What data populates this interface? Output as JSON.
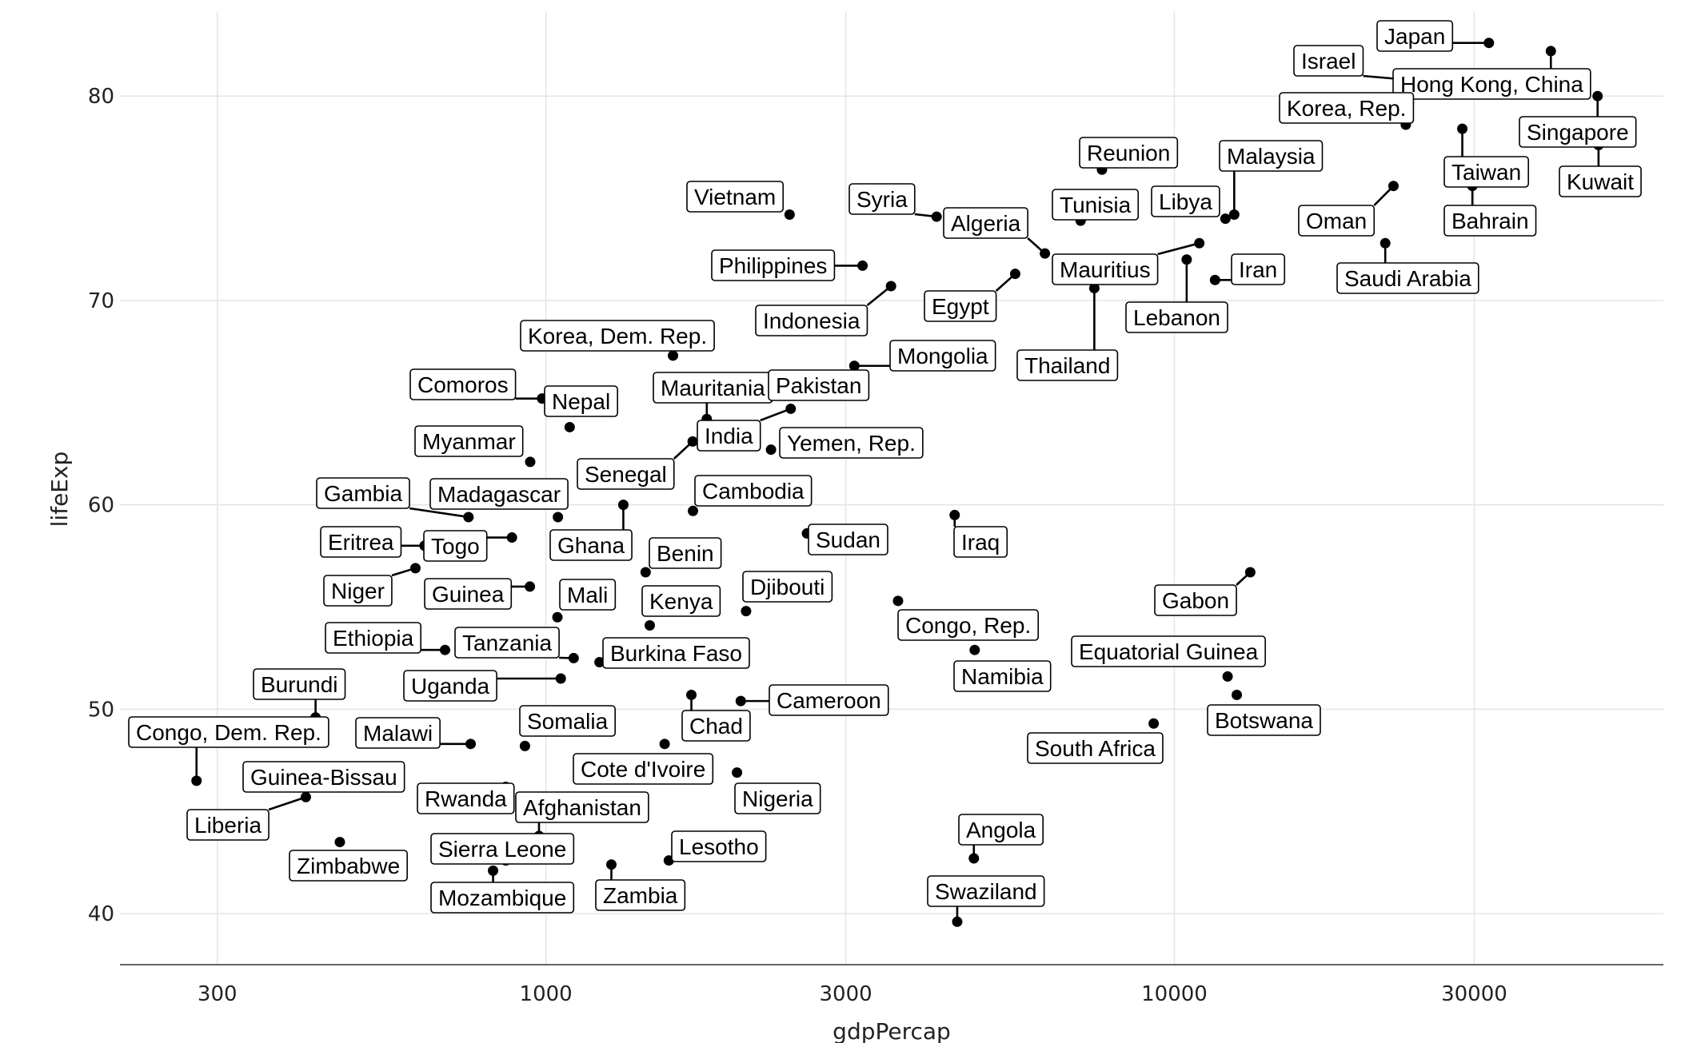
{
  "chart_data": {
    "type": "scatter",
    "xlabel": "gdpPercap",
    "ylabel": "lifeExp",
    "x_scale": "log10",
    "xlim": [
      210,
      60000
    ],
    "ylim": [
      37.5,
      84.7
    ],
    "x_ticks": [
      300,
      1000,
      3000,
      10000,
      30000
    ],
    "y_ticks": [
      40,
      50,
      60,
      70,
      80
    ],
    "grid": true,
    "legend": "none",
    "points": [
      {
        "name": "Japan",
        "x": 31656,
        "y": 82.6
      },
      {
        "name": "Israel",
        "x": 25523,
        "y": 80.7
      },
      {
        "name": "Hong Kong, China",
        "x": 39725,
        "y": 82.2
      },
      {
        "name": "Korea, Rep.",
        "x": 23348,
        "y": 78.6
      },
      {
        "name": "Singapore",
        "x": 47143,
        "y": 80.0
      },
      {
        "name": "Taiwan",
        "x": 28718,
        "y": 78.4
      },
      {
        "name": "Kuwait",
        "x": 47307,
        "y": 77.6
      },
      {
        "name": "Bahrain",
        "x": 29796,
        "y": 75.6
      },
      {
        "name": "Oman",
        "x": 22316,
        "y": 75.6
      },
      {
        "name": "Saudi Arabia",
        "x": 21655,
        "y": 72.8
      },
      {
        "name": "Malaysia",
        "x": 12452,
        "y": 74.2
      },
      {
        "name": "Libya",
        "x": 12057,
        "y": 74.0
      },
      {
        "name": "Reunion",
        "x": 7670,
        "y": 76.4
      },
      {
        "name": "Tunisia",
        "x": 7093,
        "y": 73.9
      },
      {
        "name": "Iran",
        "x": 11606,
        "y": 71.0
      },
      {
        "name": "Lebanon",
        "x": 10461,
        "y": 72.0
      },
      {
        "name": "Mauritius",
        "x": 10957,
        "y": 72.8
      },
      {
        "name": "Thailand",
        "x": 7458,
        "y": 70.6
      },
      {
        "name": "Algeria",
        "x": 6223,
        "y": 72.3
      },
      {
        "name": "Egypt",
        "x": 5581,
        "y": 71.3
      },
      {
        "name": "Syria",
        "x": 4185,
        "y": 74.1
      },
      {
        "name": "Vietnam",
        "x": 2442,
        "y": 74.2
      },
      {
        "name": "Philippines",
        "x": 3190,
        "y": 71.7
      },
      {
        "name": "Indonesia",
        "x": 3541,
        "y": 70.7
      },
      {
        "name": "Mongolia",
        "x": 3096,
        "y": 66.8
      },
      {
        "name": "Korea, Dem. Rep.",
        "x": 1593,
        "y": 67.3
      },
      {
        "name": "Comoros",
        "x": 986,
        "y": 65.2
      },
      {
        "name": "Nepal",
        "x": 1091,
        "y": 63.8
      },
      {
        "name": "Mauritania",
        "x": 1803,
        "y": 64.2
      },
      {
        "name": "Pakistan",
        "x": 2606,
        "y": 65.5
      },
      {
        "name": "India",
        "x": 2452,
        "y": 64.7
      },
      {
        "name": "Yemen, Rep.",
        "x": 2281,
        "y": 62.7
      },
      {
        "name": "Myanmar",
        "x": 944,
        "y": 62.1
      },
      {
        "name": "Senegal",
        "x": 1712,
        "y": 63.1
      },
      {
        "name": "Cambodia",
        "x": 1714,
        "y": 59.7
      },
      {
        "name": "Gambia",
        "x": 753,
        "y": 59.4
      },
      {
        "name": "Madagascar",
        "x": 1045,
        "y": 59.4
      },
      {
        "name": "Ghana",
        "x": 1328,
        "y": 60.0
      },
      {
        "name": "Eritrea",
        "x": 641,
        "y": 58.0
      },
      {
        "name": "Togo",
        "x": 883,
        "y": 58.4
      },
      {
        "name": "Benin",
        "x": 1441,
        "y": 56.7
      },
      {
        "name": "Sudan",
        "x": 2602,
        "y": 58.6
      },
      {
        "name": "Iraq",
        "x": 4471,
        "y": 59.5
      },
      {
        "name": "Niger",
        "x": 620,
        "y": 56.9
      },
      {
        "name": "Guinea",
        "x": 943,
        "y": 56.0
      },
      {
        "name": "Mali",
        "x": 1043,
        "y": 54.5
      },
      {
        "name": "Kenya",
        "x": 1463,
        "y": 54.1
      },
      {
        "name": "Djibouti",
        "x": 2082,
        "y": 54.8
      },
      {
        "name": "Congo, Rep.",
        "x": 3633,
        "y": 55.3
      },
      {
        "name": "Gabon",
        "x": 13206,
        "y": 56.7
      },
      {
        "name": "Ethiopia",
        "x": 691,
        "y": 52.9
      },
      {
        "name": "Tanzania",
        "x": 1107,
        "y": 52.5
      },
      {
        "name": "Burkina Faso",
        "x": 1217,
        "y": 52.3
      },
      {
        "name": "Namibia",
        "x": 4811,
        "y": 52.9
      },
      {
        "name": "Equatorial Guinea",
        "x": 12154,
        "y": 51.6
      },
      {
        "name": "Uganda",
        "x": 1056,
        "y": 51.5
      },
      {
        "name": "Botswana",
        "x": 12570,
        "y": 50.7
      },
      {
        "name": "Burundi",
        "x": 430,
        "y": 49.6
      },
      {
        "name": "Chad",
        "x": 1704,
        "y": 50.7
      },
      {
        "name": "Cameroon",
        "x": 2042,
        "y": 50.4
      },
      {
        "name": "Congo, Dem. Rep.",
        "x": 278,
        "y": 46.5
      },
      {
        "name": "Malawi",
        "x": 759,
        "y": 48.3
      },
      {
        "name": "Somalia",
        "x": 926,
        "y": 48.2
      },
      {
        "name": "Cote d'Ivoire",
        "x": 1545,
        "y": 48.3
      },
      {
        "name": "South Africa",
        "x": 9270,
        "y": 49.3
      },
      {
        "name": "Guinea-Bissau",
        "x": 579,
        "y": 46.4
      },
      {
        "name": "Liberia",
        "x": 415,
        "y": 45.7
      },
      {
        "name": "Rwanda",
        "x": 863,
        "y": 46.2
      },
      {
        "name": "Afghanistan",
        "x": 975,
        "y": 43.8
      },
      {
        "name": "Nigeria",
        "x": 2014,
        "y": 46.9
      },
      {
        "name": "Zimbabwe",
        "x": 470,
        "y": 43.5
      },
      {
        "name": "Sierra Leone",
        "x": 863,
        "y": 42.6
      },
      {
        "name": "Mozambique",
        "x": 824,
        "y": 42.1
      },
      {
        "name": "Zambia",
        "x": 1271,
        "y": 42.4
      },
      {
        "name": "Lesotho",
        "x": 1569,
        "y": 42.6
      },
      {
        "name": "Angola",
        "x": 4797,
        "y": 42.7
      },
      {
        "name": "Swaziland",
        "x": 4513,
        "y": 39.6
      }
    ]
  }
}
